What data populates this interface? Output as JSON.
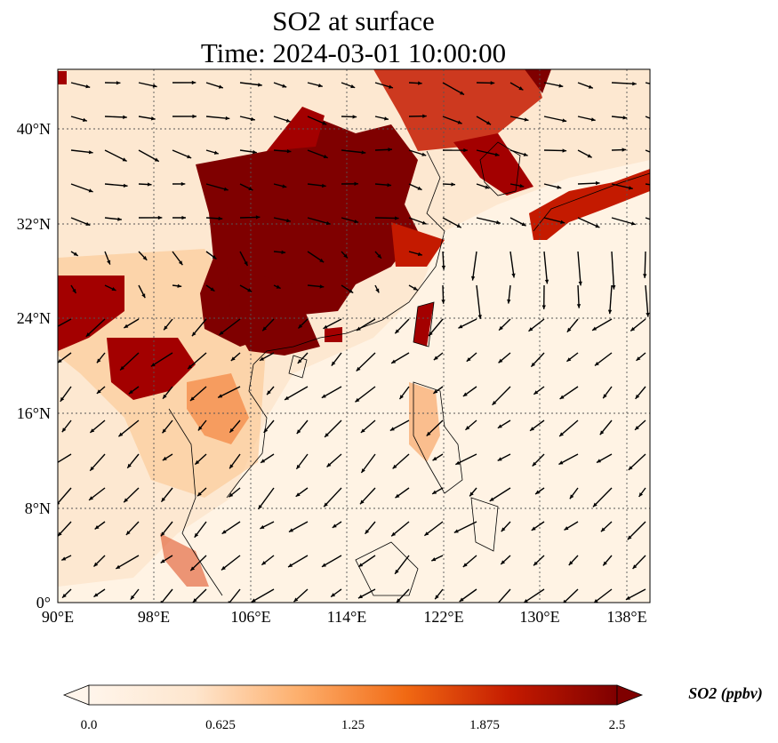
{
  "title": {
    "line1": "SO2 at surface",
    "line2": "Time: 2024-03-01 10:00:00"
  },
  "map": {
    "lon_range": [
      90,
      139
    ],
    "lat_range": [
      0,
      45
    ],
    "x_ticks": [
      "90°E",
      "98°E",
      "106°E",
      "114°E",
      "122°E",
      "130°E",
      "138°E"
    ],
    "y_ticks": [
      "0°",
      "8°N",
      "16°N",
      "24°N",
      "32°N",
      "40°N"
    ],
    "x_tick_values": [
      90,
      98,
      106,
      114,
      122,
      130,
      138
    ],
    "y_tick_values": [
      0,
      8,
      16,
      24,
      32,
      40
    ],
    "gridlines": true,
    "colormap_colors": [
      "#fff5eb",
      "#fdd0a2",
      "#fd8d3c",
      "#d94801",
      "#a30000",
      "#7f0000"
    ]
  },
  "colorbar": {
    "label": "SO2 (ppbv)",
    "ticks": [
      "0.0",
      "0.625",
      "1.25",
      "1.875",
      "2.5"
    ],
    "range": [
      0,
      2.5
    ],
    "extend": "both"
  }
}
